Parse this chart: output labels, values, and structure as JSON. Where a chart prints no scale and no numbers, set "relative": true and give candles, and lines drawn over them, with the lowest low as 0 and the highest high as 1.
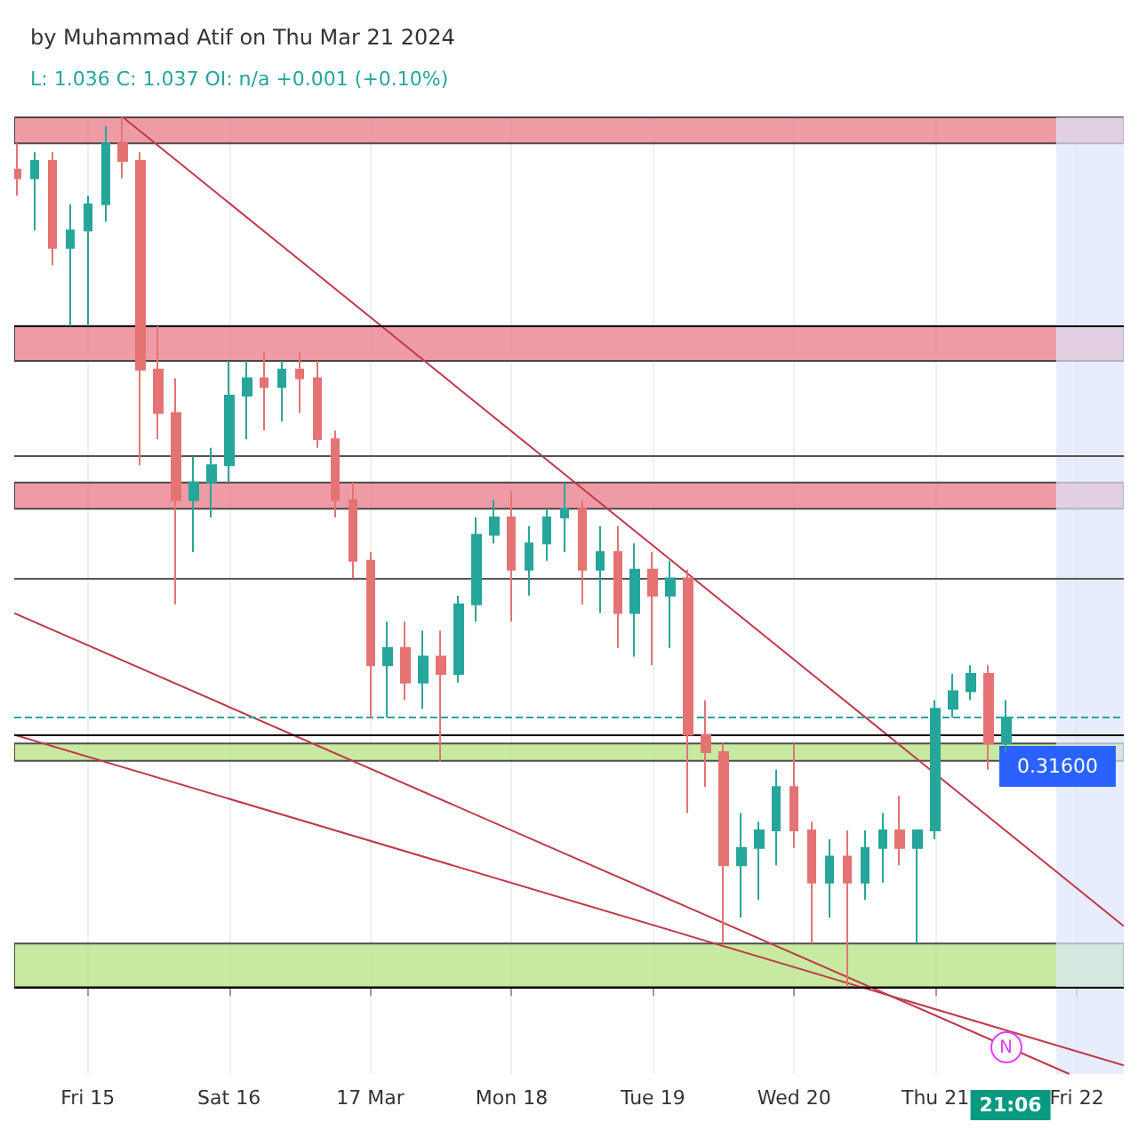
{
  "chart_data": {
    "type": "candlestick",
    "title": "by Muhammad Atif on Thu Mar 21 2024",
    "subtitle": "L: 1.036 C: 1.037 OI: n/a +0.001 (+0.10%)",
    "relative": true,
    "grid": "x",
    "xlim": [
      "2024-03-14T11:30",
      "2024-03-22T08:00"
    ],
    "xticks": [
      {
        "value": "2024-03-15",
        "label": "Fri 15"
      },
      {
        "value": "2024-03-16",
        "label": "Sat 16"
      },
      {
        "value": "2024-03-17",
        "label": "17 Mar"
      },
      {
        "value": "2024-03-18",
        "label": "Mon 18"
      },
      {
        "value": "2024-03-19",
        "label": "Tue 19"
      },
      {
        "value": "2024-03-20",
        "label": "Wed 20"
      },
      {
        "value": "2024-03-21",
        "label": "Thu 21"
      },
      {
        "value": "2024-03-22",
        "label": "Fri 22"
      }
    ],
    "x": [
      "2024-03-14T12:00",
      "2024-03-14T15:00",
      "2024-03-14T18:00",
      "2024-03-14T21:00",
      "2024-03-15T00:00",
      "2024-03-15T03:00",
      "2024-03-15T06:00",
      "2024-03-15T09:00",
      "2024-03-15T12:00",
      "2024-03-15T15:00",
      "2024-03-15T18:00",
      "2024-03-15T21:00",
      "2024-03-16T00:00",
      "2024-03-16T03:00",
      "2024-03-16T06:00",
      "2024-03-16T09:00",
      "2024-03-16T12:00",
      "2024-03-16T15:00",
      "2024-03-16T18:00",
      "2024-03-16T21:00",
      "2024-03-17T00:00",
      "2024-03-17T03:00",
      "2024-03-17T06:00",
      "2024-03-17T09:00",
      "2024-03-17T12:00",
      "2024-03-17T15:00",
      "2024-03-17T18:00",
      "2024-03-17T21:00",
      "2024-03-18T00:00",
      "2024-03-18T03:00",
      "2024-03-18T06:00",
      "2024-03-18T09:00",
      "2024-03-18T12:00",
      "2024-03-18T15:00",
      "2024-03-18T18:00",
      "2024-03-18T21:00",
      "2024-03-19T00:00",
      "2024-03-19T03:00",
      "2024-03-19T06:00",
      "2024-03-19T09:00",
      "2024-03-19T12:00",
      "2024-03-19T15:00",
      "2024-03-19T18:00",
      "2024-03-19T21:00",
      "2024-03-20T00:00",
      "2024-03-20T03:00",
      "2024-03-20T06:00",
      "2024-03-20T09:00",
      "2024-03-20T12:00",
      "2024-03-20T15:00",
      "2024-03-20T18:00",
      "2024-03-20T21:00",
      "2024-03-21T00:00",
      "2024-03-21T03:00",
      "2024-03-21T06:00",
      "2024-03-21T09:00",
      "2024-03-21T12:00"
    ],
    "ohlc": [
      [
        0.94,
        0.97,
        0.91,
        0.93
      ],
      [
        0.93,
        0.96,
        0.87,
        0.95
      ],
      [
        0.95,
        0.96,
        0.83,
        0.85
      ],
      [
        0.85,
        0.9,
        0.76,
        0.87
      ],
      [
        0.87,
        0.91,
        0.76,
        0.9
      ],
      [
        0.9,
        0.99,
        0.88,
        0.97
      ],
      [
        0.97,
        1,
        0.93,
        0.95
      ],
      [
        0.95,
        0.96,
        0.6,
        0.71
      ],
      [
        0.71,
        0.76,
        0.63,
        0.66
      ],
      [
        0.66,
        0.7,
        0.44,
        0.56
      ],
      [
        0.56,
        0.61,
        0.5,
        0.58
      ],
      [
        0.58,
        0.62,
        0.54,
        0.6
      ],
      [
        0.6,
        0.72,
        0.58,
        0.68
      ],
      [
        0.68,
        0.72,
        0.63,
        0.7
      ],
      [
        0.7,
        0.73,
        0.64,
        0.69
      ],
      [
        0.69,
        0.72,
        0.65,
        0.71
      ],
      [
        0.71,
        0.73,
        0.66,
        0.7
      ],
      [
        0.7,
        0.72,
        0.62,
        0.63
      ],
      [
        0.63,
        0.64,
        0.54,
        0.56
      ],
      [
        0.56,
        0.58,
        0.47,
        0.49
      ],
      [
        0.49,
        0.5,
        0.31,
        0.37
      ],
      [
        0.37,
        0.42,
        0.31,
        0.39
      ],
      [
        0.39,
        0.42,
        0.33,
        0.35
      ],
      [
        0.35,
        0.41,
        0.32,
        0.38
      ],
      [
        0.38,
        0.41,
        0.26,
        0.36
      ],
      [
        0.36,
        0.45,
        0.35,
        0.44
      ],
      [
        0.44,
        0.54,
        0.42,
        0.52
      ],
      [
        0.52,
        0.56,
        0.51,
        0.54
      ],
      [
        0.54,
        0.57,
        0.42,
        0.48
      ],
      [
        0.48,
        0.53,
        0.45,
        0.51
      ],
      [
        0.51,
        0.55,
        0.49,
        0.54
      ],
      [
        0.54,
        0.58,
        0.5,
        0.55
      ],
      [
        0.55,
        0.56,
        0.44,
        0.48
      ],
      [
        0.48,
        0.53,
        0.43,
        0.5
      ],
      [
        0.5,
        0.53,
        0.39,
        0.43
      ],
      [
        0.43,
        0.51,
        0.38,
        0.48
      ],
      [
        0.48,
        0.5,
        0.37,
        0.45
      ],
      [
        0.45,
        0.49,
        0.39,
        0.47
      ],
      [
        0.47,
        0.48,
        0.2,
        0.29
      ],
      [
        0.29,
        0.33,
        0.23,
        0.27
      ],
      [
        0.27,
        0.28,
        0.05,
        0.14
      ],
      [
        0.14,
        0.2,
        0.08,
        0.16
      ],
      [
        0.16,
        0.19,
        0.1,
        0.18
      ],
      [
        0.18,
        0.25,
        0.14,
        0.23
      ],
      [
        0.23,
        0.28,
        0.16,
        0.18
      ],
      [
        0.18,
        0.19,
        0.05,
        0.12
      ],
      [
        0.12,
        0.17,
        0.08,
        0.15
      ],
      [
        0.15,
        0.18,
        0,
        0.12
      ],
      [
        0.12,
        0.18,
        0.1,
        0.16
      ],
      [
        0.16,
        0.2,
        0.12,
        0.18
      ],
      [
        0.18,
        0.22,
        0.14,
        0.16
      ],
      [
        0.16,
        0.18,
        0.05,
        0.18
      ],
      [
        0.18,
        0.33,
        0.17,
        0.32
      ],
      [
        0.32,
        0.36,
        0.31,
        0.34
      ],
      [
        0.34,
        0.37,
        0.33,
        0.36
      ],
      [
        0.36,
        0.37,
        0.25,
        0.28
      ],
      [
        0.28,
        0.33,
        0.27,
        0.31
      ]
    ],
    "series": [
      {
        "type": "line",
        "color": "#c0394a",
        "x": [
          "2024-03-15T06:00",
          "2024-03-22T08:00"
        ],
        "values": [
          1,
          0.07
        ]
      },
      {
        "type": "line",
        "color": "#c0394a",
        "x": [
          "2024-03-14T11:30",
          "2024-03-21T22:45"
        ],
        "values": [
          0.43,
          -0.1
        ]
      },
      {
        "type": "line",
        "color": "#c0394a",
        "x": [
          "2024-03-14T11:30",
          "2024-03-22T08:00"
        ],
        "values": [
          0.29,
          -0.09
        ]
      }
    ],
    "ref_lines": [
      {
        "axis": "y",
        "value": 0.76,
        "color": "#000000"
      },
      {
        "axis": "y",
        "value": 0.61,
        "color": "#555555"
      },
      {
        "axis": "y",
        "value": 0.47,
        "color": "#555555"
      },
      {
        "axis": "y",
        "value": 0.29,
        "color": "#000000"
      },
      {
        "axis": "y",
        "value": 0,
        "color": "#000000"
      },
      {
        "axis": "y",
        "value": 0.31,
        "color": "#26a69a",
        "line_style": "dashed"
      }
    ],
    "bands": [
      {
        "axis": "y",
        "from": 0.97,
        "to": 1,
        "color": "#eb8a96"
      },
      {
        "axis": "y",
        "from": 0.72,
        "to": 0.76,
        "color": "#eb8a96"
      },
      {
        "axis": "y",
        "from": 0.55,
        "to": 0.58,
        "color": "#eb8a96"
      },
      {
        "axis": "y",
        "from": 0.26,
        "to": 0.28,
        "color": "#bde68f",
        "label": "0.31600"
      },
      {
        "axis": "y",
        "from": 0,
        "to": 0.05,
        "color": "#bde68f"
      },
      {
        "axis": "x",
        "from": "2024-03-21T20:30",
        "to": "2024-03-22T08:00",
        "color": "#dde6fb"
      }
    ],
    "annotations": [
      "21:06",
      "N"
    ]
  }
}
